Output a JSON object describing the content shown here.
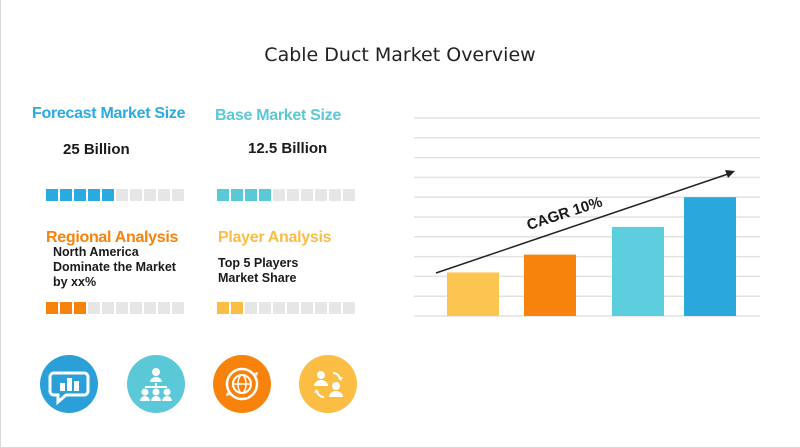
{
  "title": "Cable Duct Market Overview",
  "cards": [
    {
      "title": "Forecast Market Size",
      "value": "25 Billion",
      "color": "#29abe2",
      "filled": 5,
      "total": 10
    },
    {
      "title": "Base Market Size",
      "value": "12.5 Billion",
      "color": "#5bc8d8",
      "filled": 4,
      "total": 10
    },
    {
      "title": "Regional Analysis",
      "text": [
        "North America",
        "Dominate the Market",
        "by xx%"
      ],
      "color": "#f7820c",
      "filled": 3,
      "total": 10
    },
    {
      "title": "Player Analysis",
      "text": [
        "Top 5 Players",
        "Market Share"
      ],
      "color": "#fbbd44",
      "filled": 2,
      "total": 10
    }
  ],
  "icons": [
    {
      "name": "chat-chart-icon",
      "color": "#2a9fd8"
    },
    {
      "name": "network-people-icon",
      "color": "#5bc8d8"
    },
    {
      "name": "globe-cycle-icon",
      "color": "#f7820c"
    },
    {
      "name": "people-exchange-icon",
      "color": "#fbbd44"
    }
  ],
  "chart_data": {
    "type": "bar",
    "categories": [
      "",
      "",
      "",
      ""
    ],
    "values": [
      22,
      31,
      45,
      60
    ],
    "colors": [
      "#fbc54f",
      "#f7820c",
      "#5dcedd",
      "#2aa8dc"
    ],
    "ylim": [
      0,
      100
    ],
    "grid": true,
    "annotation": "CAGR 10%"
  }
}
